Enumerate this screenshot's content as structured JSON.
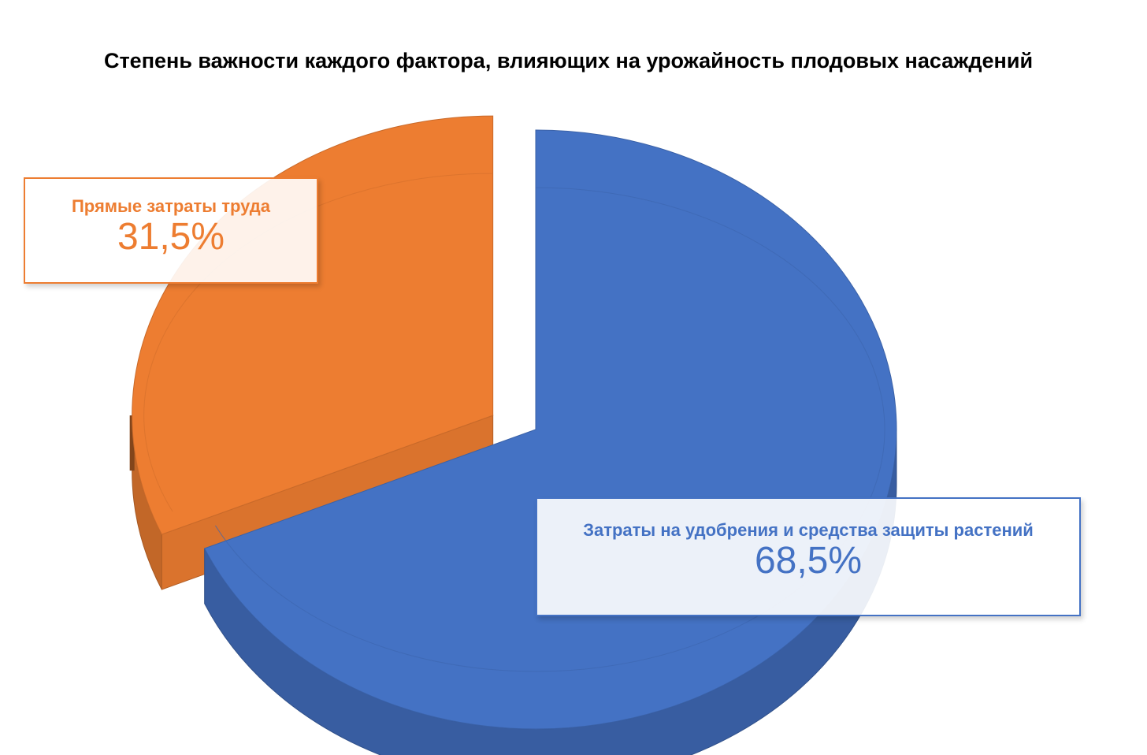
{
  "chart_data": {
    "type": "pie",
    "title": "Степень важности каждого фактора, влияющих на урожайность плодовых насаждений",
    "slices": [
      {
        "label": "Затраты на удобрения и средства защиты растений",
        "value": 68.5,
        "value_label": "68,5%",
        "color": "#4472C4",
        "exploded": false
      },
      {
        "label": "Прямые затраты труда",
        "value": 31.5,
        "value_label": "31,5%",
        "color": "#ED7D31",
        "exploded": true
      }
    ],
    "style": "3d"
  }
}
